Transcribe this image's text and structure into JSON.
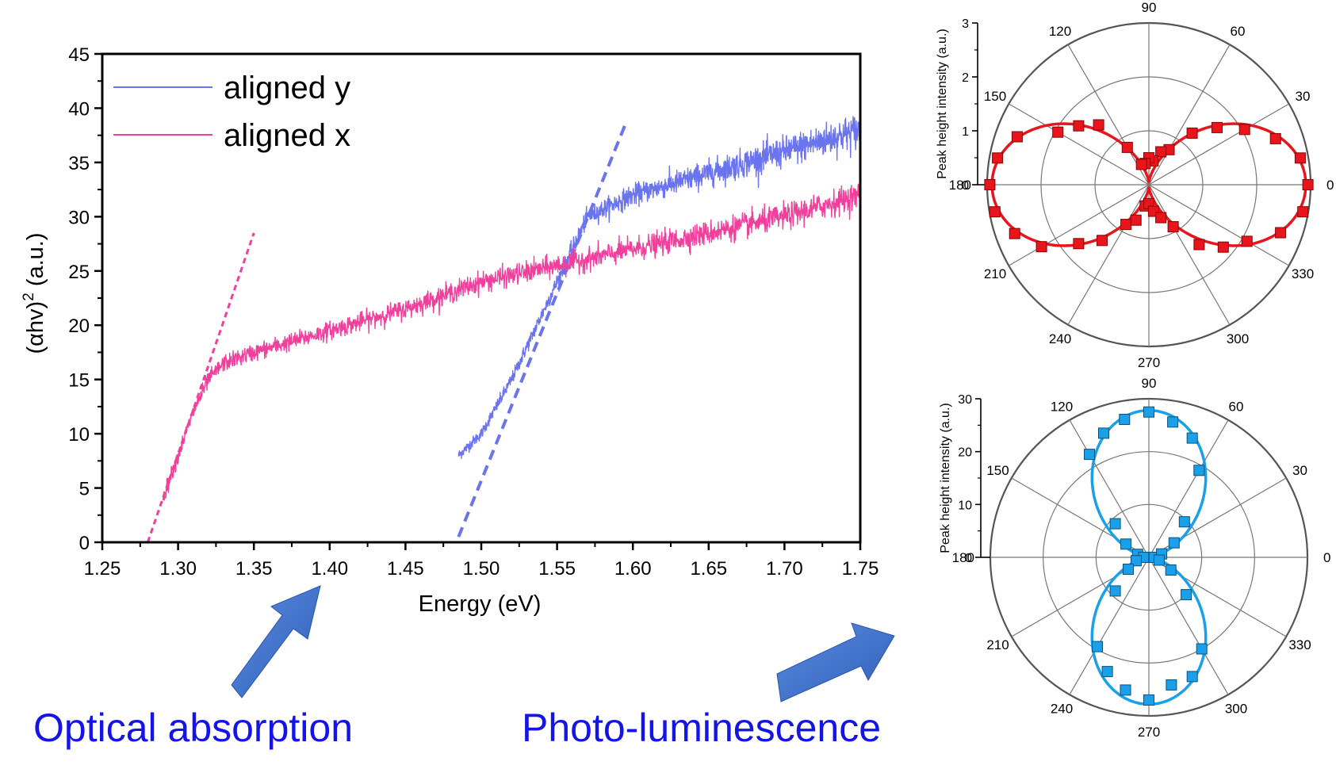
{
  "chart_data": [
    {
      "type": "line",
      "xlabel": "Energy (eV)",
      "ylabel_main": "(αhv)",
      "ylabel_sup": "2",
      "ylabel_unit": " (a.u.)",
      "xlim": [
        1.25,
        1.75
      ],
      "ylim": [
        0,
        45
      ],
      "xticks": [
        "1.25",
        "1.30",
        "1.35",
        "1.40",
        "1.45",
        "1.50",
        "1.55",
        "1.60",
        "1.65",
        "1.70",
        "1.75"
      ],
      "yticks": [
        "0",
        "5",
        "10",
        "15",
        "20",
        "25",
        "30",
        "35",
        "40",
        "45"
      ],
      "legend_position": "top-left",
      "series": [
        {
          "name": "aligned y",
          "color": "#6a74ee",
          "x": [
            1.485,
            1.5,
            1.52,
            1.54,
            1.55,
            1.56,
            1.57,
            1.6,
            1.65,
            1.7,
            1.75
          ],
          "y": [
            8,
            10,
            15,
            21,
            24,
            27,
            30,
            32,
            34,
            36,
            38
          ]
        },
        {
          "name": "aligned x",
          "color": "#f23f9c",
          "x": [
            1.29,
            1.3,
            1.31,
            1.32,
            1.33,
            1.35,
            1.4,
            1.45,
            1.5,
            1.55,
            1.6,
            1.65,
            1.7,
            1.75
          ],
          "y": [
            4,
            8,
            12,
            15,
            16.5,
            17.5,
            19.5,
            21.5,
            24,
            25.5,
            27,
            28.5,
            30,
            32
          ]
        }
      ],
      "fit_lines": [
        {
          "color": "#6a74ee",
          "x": [
            1.485,
            1.595
          ],
          "y": [
            0.5,
            38.5
          ]
        },
        {
          "color": "#f23f9c",
          "x": [
            1.28,
            1.35
          ],
          "y": [
            0,
            28.5
          ]
        }
      ]
    },
    {
      "type": "scatter",
      "subtype": "polar",
      "ylabel": "Peak height intensity (a.u.)",
      "rlim": [
        0,
        3
      ],
      "rticks": [
        "0",
        "1",
        "2",
        "3"
      ],
      "angle_labels": [
        "0",
        "30",
        "60",
        "90",
        "120",
        "150",
        "180",
        "210",
        "240",
        "270",
        "300",
        "330"
      ],
      "color": "#e8161c",
      "points": {
        "angle": [
          0,
          10,
          20,
          30,
          40,
          50,
          60,
          70,
          80,
          90,
          100,
          110,
          120,
          130,
          140,
          150,
          160,
          170,
          180,
          190,
          200,
          210,
          220,
          230,
          240,
          250,
          260,
          270,
          280,
          290,
          300,
          310,
          320,
          330,
          340,
          350
        ],
        "r": [
          2.95,
          2.85,
          2.5,
          2.05,
          1.65,
          1.25,
          0.75,
          0.65,
          0.45,
          0.5,
          0.4,
          0.4,
          0.8,
          1.45,
          1.7,
          1.95,
          2.6,
          2.85,
          2.95,
          2.9,
          2.65,
          2.3,
          1.7,
          1.35,
          0.85,
          0.7,
          0.4,
          0.35,
          0.5,
          0.65,
          0.9,
          1.45,
          1.8,
          2.1,
          2.6,
          2.9
        ]
      },
      "fit": {
        "model": "cos2",
        "amplitude": 2.85,
        "offset": 0.06
      }
    },
    {
      "type": "scatter",
      "subtype": "polar",
      "ylabel": "Peak height intensity (a.u.)",
      "rlim": [
        0,
        30
      ],
      "rticks": [
        "0",
        "10",
        "20",
        "30"
      ],
      "angle_labels": [
        "0",
        "30",
        "60",
        "90",
        "120",
        "150",
        "180",
        "210",
        "240",
        "270",
        "300",
        "330"
      ],
      "color": "#1aa0e8",
      "points": {
        "angle": [
          0,
          15,
          30,
          45,
          60,
          70,
          80,
          90,
          100,
          110,
          120,
          135,
          150,
          165,
          180,
          195,
          210,
          225,
          240,
          250,
          260,
          270,
          280,
          290,
          300,
          315,
          330,
          345
        ],
        "r": [
          1,
          2.5,
          5.5,
          9.5,
          19,
          24,
          26,
          27.5,
          26.5,
          25,
          22.5,
          9,
          5,
          2.2,
          1,
          2.5,
          4.5,
          9,
          19.5,
          23,
          25.5,
          27,
          24.5,
          24,
          20,
          10,
          4.8,
          2
        ]
      },
      "fit": {
        "model": "sin2",
        "amplitude": 27.5,
        "offset": 0.3
      }
    }
  ],
  "captions": {
    "left": "Optical absorption",
    "right": "Photo-luminescence"
  },
  "colors": {
    "caption": "#1414e6",
    "arrow": "#3f71c9"
  }
}
